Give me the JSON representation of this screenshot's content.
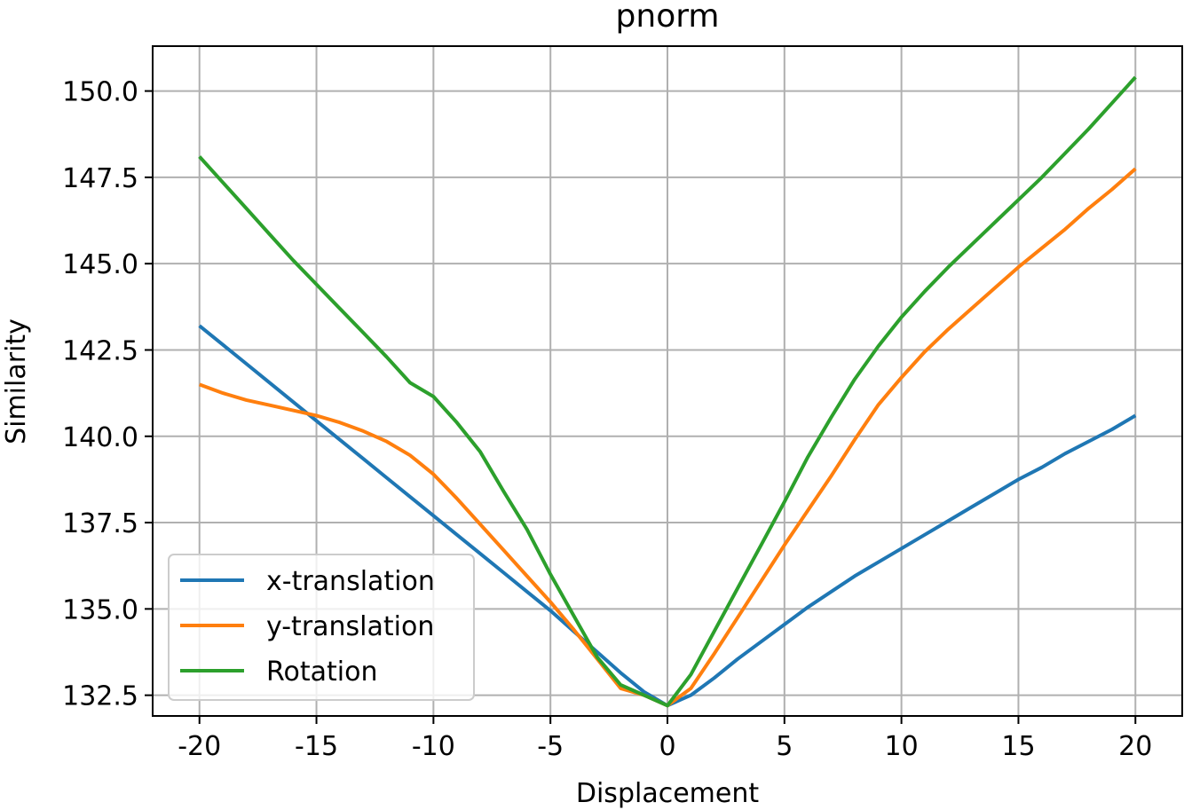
{
  "chart_data": {
    "type": "line",
    "title": "pnorm",
    "xlabel": "Displacement",
    "ylabel": "Similarity",
    "xlim": [
      -22,
      22
    ],
    "ylim": [
      131.9,
      151.3
    ],
    "xticks": [
      -20,
      -15,
      -10,
      -5,
      0,
      5,
      10,
      15,
      20
    ],
    "xtick_labels": [
      "-20",
      "-15",
      "-10",
      "-5",
      "0",
      "5",
      "10",
      "15",
      "20"
    ],
    "yticks": [
      132.5,
      135.0,
      137.5,
      140.0,
      142.5,
      145.0,
      147.5,
      150.0
    ],
    "ytick_labels": [
      "132.5",
      "135.0",
      "137.5",
      "140.0",
      "142.5",
      "145.0",
      "147.5",
      "150.0"
    ],
    "grid": true,
    "legend_position": "lower-left",
    "x": [
      -20,
      -19,
      -18,
      -17,
      -16,
      -15,
      -14,
      -13,
      -12,
      -11,
      -10,
      -9,
      -8,
      -7,
      -6,
      -5,
      -4,
      -3,
      -2,
      -1,
      0,
      1,
      2,
      3,
      4,
      5,
      6,
      7,
      8,
      9,
      10,
      11,
      12,
      13,
      14,
      15,
      16,
      17,
      18,
      19,
      20
    ],
    "series": [
      {
        "name": "x-translation",
        "color": "#1f77b4",
        "values": [
          143.2,
          142.65,
          142.1,
          141.55,
          141.0,
          140.45,
          139.9,
          139.35,
          138.8,
          138.25,
          137.7,
          137.15,
          136.6,
          136.05,
          135.5,
          134.95,
          134.35,
          133.75,
          133.15,
          132.6,
          132.2,
          132.5,
          133.0,
          133.55,
          134.05,
          134.55,
          135.05,
          135.5,
          135.95,
          136.35,
          136.75,
          137.15,
          137.55,
          137.95,
          138.35,
          138.75,
          139.1,
          139.5,
          139.85,
          140.2,
          140.6
        ]
      },
      {
        "name": "y-translation",
        "color": "#ff7f0e",
        "values": [
          141.5,
          141.25,
          141.05,
          140.9,
          140.75,
          140.6,
          140.4,
          140.15,
          139.85,
          139.45,
          138.9,
          138.2,
          137.45,
          136.7,
          135.95,
          135.2,
          134.4,
          133.55,
          132.7,
          132.5,
          132.2,
          132.7,
          133.7,
          134.75,
          135.8,
          136.85,
          137.85,
          138.85,
          139.9,
          140.9,
          141.7,
          142.45,
          143.1,
          143.7,
          144.3,
          144.9,
          145.45,
          146.0,
          146.6,
          147.15,
          147.75
        ]
      },
      {
        "name": "Rotation",
        "color": "#2ca02c",
        "values": [
          148.1,
          147.35,
          146.6,
          145.85,
          145.1,
          144.4,
          143.7,
          143.0,
          142.3,
          141.55,
          141.15,
          140.4,
          139.55,
          138.4,
          137.3,
          136.0,
          134.8,
          133.6,
          132.8,
          132.5,
          132.2,
          133.1,
          134.35,
          135.6,
          136.85,
          138.1,
          139.4,
          140.55,
          141.65,
          142.6,
          143.45,
          144.2,
          144.9,
          145.55,
          146.2,
          146.85,
          147.5,
          148.2,
          148.9,
          149.65,
          150.4
        ]
      }
    ]
  }
}
